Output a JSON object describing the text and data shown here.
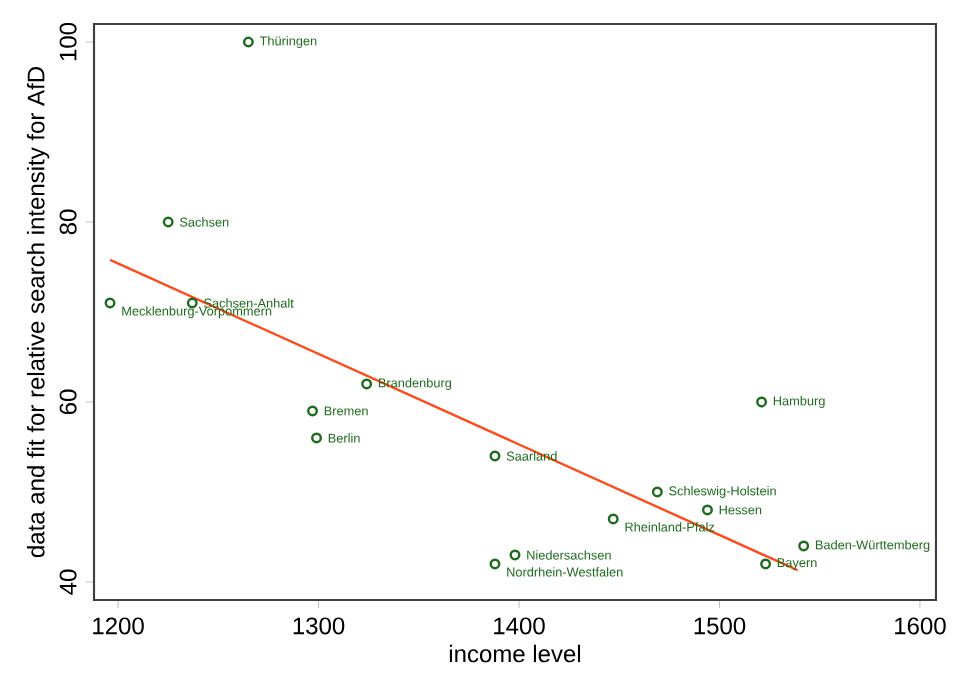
{
  "chart_data": {
    "type": "scatter",
    "xlabel": "income level",
    "ylabel": "data and fit for relative search intensity for AfD",
    "xlim": [
      1188,
      1608
    ],
    "ylim": [
      38,
      102
    ],
    "xticks": [
      1200,
      1300,
      1400,
      1500,
      1600
    ],
    "yticks": [
      40,
      60,
      80,
      100
    ],
    "marker": "circle",
    "series": [
      {
        "color": "#1e6b1e",
        "x": [
          1265,
          1225,
          1196,
          1237,
          1324,
          1297,
          1299,
          1388,
          1469,
          1494,
          1447,
          1398,
          1388,
          1521,
          1542,
          1523
        ],
        "values": [
          100,
          80,
          71,
          71,
          62,
          59,
          56,
          54,
          50,
          48,
          47,
          43,
          42,
          60,
          44,
          42
        ]
      },
      {
        "type": "line",
        "color": "#ff4a1c",
        "marker": "none",
        "x": [
          1196,
          1539
        ],
        "values": [
          75.8,
          41.3
        ]
      }
    ],
    "annotations": [
      {
        "text": "Thüringen",
        "x": 1265,
        "y": 100
      },
      {
        "text": "Sachsen",
        "x": 1225,
        "y": 80
      },
      {
        "text": "Mecklenburg-Vorpommern",
        "x": 1196,
        "y": 71
      },
      {
        "text": "Sachsen-Anhalt",
        "x": 1237,
        "y": 71
      },
      {
        "text": "Brandenburg",
        "x": 1324,
        "y": 62
      },
      {
        "text": "Bremen",
        "x": 1297,
        "y": 59
      },
      {
        "text": "Berlin",
        "x": 1299,
        "y": 56
      },
      {
        "text": "Saarland",
        "x": 1388,
        "y": 54
      },
      {
        "text": "Schleswig-Holstein",
        "x": 1469,
        "y": 50
      },
      {
        "text": "Hessen",
        "x": 1494,
        "y": 48
      },
      {
        "text": "Rheinland-Pfalz",
        "x": 1447,
        "y": 47
      },
      {
        "text": "Niedersachsen",
        "x": 1398,
        "y": 43
      },
      {
        "text": "Nordrhein-Westfalen",
        "x": 1388,
        "y": 42
      },
      {
        "text": "Hamburg",
        "x": 1521,
        "y": 60
      },
      {
        "text": "Baden-Württemberg",
        "x": 1542,
        "y": 44
      },
      {
        "text": "Bayern",
        "x": 1523,
        "y": 42
      }
    ]
  }
}
